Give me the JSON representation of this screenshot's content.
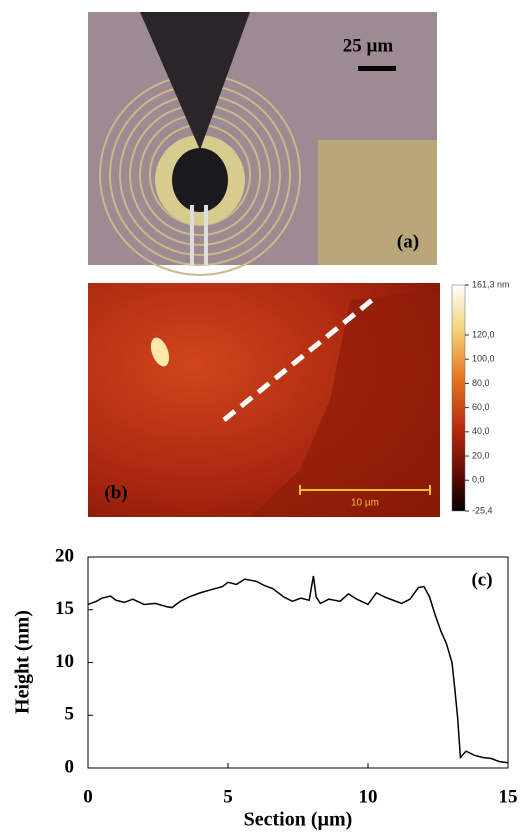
{
  "panel_a": {
    "label": "(a)",
    "scale_bar": "25 µm"
  },
  "panel_b": {
    "label": "(b)",
    "scale_bar": "10 µm",
    "colorbar": {
      "lim": [
        -25.4,
        161.3
      ],
      "ticks": [
        {
          "value": 161.3,
          "label": "161,3 nm"
        },
        {
          "value": 120,
          "label": "120,0"
        },
        {
          "value": 100,
          "label": "100,0"
        },
        {
          "value": 80,
          "label": "80,0"
        },
        {
          "value": 60,
          "label": "60,0"
        },
        {
          "value": 40,
          "label": "40,0"
        },
        {
          "value": 20,
          "label": "20,0"
        },
        {
          "value": 0,
          "label": "0,0"
        },
        {
          "value": -25.4,
          "label": "-25,4"
        }
      ]
    }
  },
  "chart_data": {
    "type": "line",
    "annotation": "(c)",
    "x_label": "Section (µm)",
    "y_label": "Height (nm)",
    "xlim": [
      0,
      15
    ],
    "ylim": [
      0,
      20
    ],
    "xticks": [
      0,
      5,
      10,
      15
    ],
    "yticks": [
      0,
      5,
      10,
      15,
      20
    ],
    "series": [
      {
        "color": "#000000",
        "x": [
          0,
          0.3,
          0.5,
          0.8,
          1,
          1.3,
          1.6,
          2,
          2.4,
          2.8,
          3,
          3.3,
          3.6,
          4,
          4.4,
          4.8,
          5,
          5.3,
          5.6,
          6,
          6.3,
          6.6,
          7,
          7.3,
          7.6,
          7.9,
          8.05,
          8.15,
          8.3,
          8.6,
          9,
          9.3,
          9.6,
          10,
          10.3,
          10.6,
          10.9,
          11.2,
          11.5,
          11.8,
          12,
          12.2,
          12.4,
          12.6,
          12.8,
          13,
          13.1,
          13.2,
          13.3,
          13.5,
          13.8,
          14.1,
          14.4,
          14.7,
          15
        ],
        "values": [
          15.5,
          15.8,
          16.1,
          16.3,
          15.9,
          15.7,
          16.0,
          15.5,
          15.6,
          15.3,
          15.2,
          15.8,
          16.2,
          16.6,
          16.9,
          17.2,
          17.6,
          17.4,
          17.9,
          17.7,
          17.3,
          17.0,
          16.2,
          15.8,
          16.1,
          15.9,
          18.2,
          16.2,
          15.6,
          16.0,
          15.8,
          16.5,
          16.0,
          15.5,
          16.6,
          16.2,
          15.9,
          15.6,
          16.0,
          17.1,
          17.2,
          16.2,
          14.5,
          13.0,
          11.8,
          10.0,
          7.5,
          4.8,
          1.0,
          1.6,
          1.2,
          1.0,
          0.9,
          0.6,
          0.5
        ]
      }
    ]
  }
}
